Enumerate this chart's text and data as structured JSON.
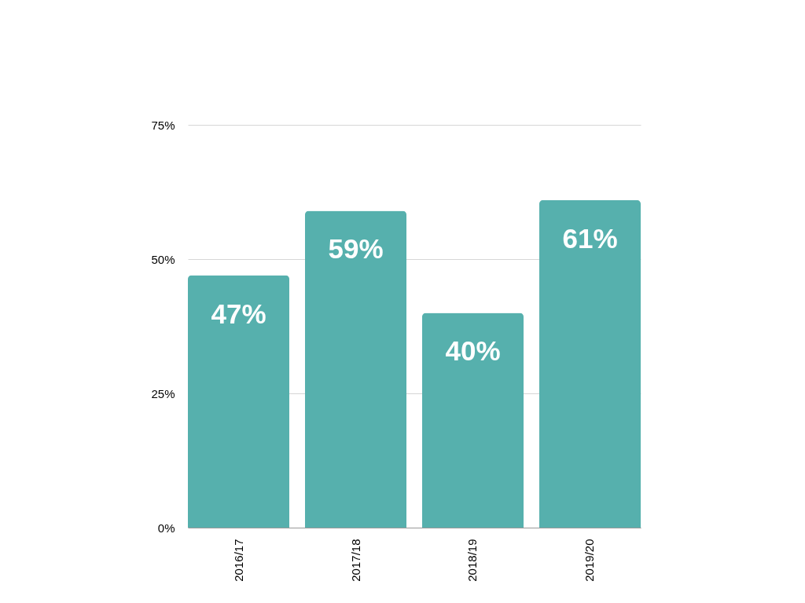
{
  "chart_data": {
    "type": "bar",
    "categories": [
      "2016/17",
      "2017/18",
      "2018/19",
      "2019/20"
    ],
    "values": [
      47,
      59,
      40,
      61
    ],
    "value_labels": [
      "47%",
      "59%",
      "40%",
      "61%"
    ],
    "color": "#56b0ad",
    "ylim": [
      0,
      75
    ],
    "yticks": [
      {
        "value": 0,
        "label": "0%"
      },
      {
        "value": 25,
        "label": "25%"
      },
      {
        "value": 50,
        "label": "50%"
      },
      {
        "value": 75,
        "label": "75%"
      }
    ],
    "grid": "y"
  }
}
